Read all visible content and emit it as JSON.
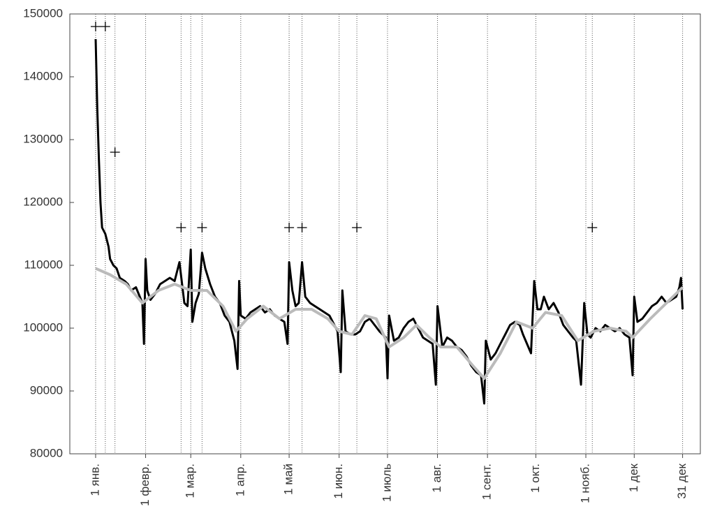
{
  "chart_data": {
    "type": "line",
    "xlim": [
      -15,
      376
    ],
    "ylim": [
      80000,
      150000
    ],
    "yticks": [
      80000,
      90000,
      100000,
      110000,
      120000,
      130000,
      140000,
      150000
    ],
    "xticks": [
      {
        "value": 1,
        "label": "1 янв."
      },
      {
        "value": 32,
        "label": "1 февр."
      },
      {
        "value": 60,
        "label": "1 мар."
      },
      {
        "value": 91,
        "label": "1 апр."
      },
      {
        "value": 121,
        "label": "1 май"
      },
      {
        "value": 152,
        "label": "1 июн."
      },
      {
        "value": 182,
        "label": "1 июль"
      },
      {
        "value": 213,
        "label": "1 авг."
      },
      {
        "value": 244,
        "label": "1 сент."
      },
      {
        "value": 274,
        "label": "1 окт."
      },
      {
        "value": 305,
        "label": "1 нояб."
      },
      {
        "value": 335,
        "label": "1 дек"
      },
      {
        "value": 365,
        "label": "31 дек"
      }
    ],
    "grid": true,
    "series": [
      {
        "color": "#000000",
        "x": [
          1,
          2,
          3,
          4,
          5,
          7,
          9,
          10,
          12,
          14,
          16,
          19,
          21,
          23,
          26,
          30,
          31,
          32,
          33,
          35,
          38,
          41,
          44,
          47,
          50,
          53,
          56,
          58,
          60,
          61,
          63,
          65,
          67,
          69,
          72,
          75,
          78,
          81,
          84,
          87,
          89,
          90,
          91,
          94,
          97,
          100,
          103,
          106,
          109,
          112,
          115,
          118,
          120,
          121,
          123,
          125,
          127,
          129,
          131,
          134,
          137,
          140,
          143,
          146,
          149,
          151,
          153,
          154,
          156,
          159,
          162,
          165,
          168,
          171,
          174,
          177,
          181,
          182,
          183,
          186,
          189,
          192,
          195,
          198,
          201,
          204,
          207,
          210,
          212,
          213,
          216,
          219,
          222,
          225,
          228,
          231,
          234,
          237,
          240,
          242,
          243,
          246,
          249,
          252,
          255,
          258,
          261,
          264,
          266,
          271,
          273,
          275,
          277,
          279,
          282,
          285,
          288,
          291,
          294,
          297,
          299,
          302,
          304,
          306,
          308,
          311,
          314,
          317,
          320,
          323,
          326,
          329,
          332,
          334,
          335,
          337,
          340,
          343,
          346,
          349,
          352,
          355,
          358,
          361,
          363,
          364,
          365
        ],
        "values": [
          146000,
          135000,
          127000,
          120000,
          116000,
          115000,
          113000,
          111000,
          110000,
          109500,
          108000,
          107500,
          107000,
          106000,
          106500,
          104000,
          97500,
          111000,
          106000,
          104500,
          105500,
          107000,
          107500,
          108000,
          107500,
          110500,
          104000,
          103500,
          112500,
          101000,
          104000,
          105500,
          112000,
          109500,
          107000,
          105000,
          104000,
          102000,
          101000,
          98000,
          93500,
          107500,
          102000,
          101500,
          102500,
          103000,
          103500,
          102500,
          103000,
          102000,
          101500,
          101000,
          97500,
          110500,
          106000,
          103500,
          104000,
          110500,
          105000,
          104000,
          103500,
          103000,
          102500,
          102000,
          100500,
          99500,
          93000,
          106000,
          99500,
          99000,
          99000,
          99500,
          101000,
          101500,
          100500,
          99500,
          98500,
          92000,
          102000,
          98000,
          98500,
          100000,
          101000,
          101500,
          100000,
          98500,
          98000,
          97500,
          91000,
          103500,
          97000,
          98500,
          98000,
          97000,
          96500,
          95500,
          94000,
          93000,
          92500,
          88000,
          98000,
          95000,
          96000,
          97500,
          99000,
          100500,
          101000,
          100500,
          99000,
          96000,
          107500,
          103000,
          103000,
          105000,
          103000,
          104000,
          102500,
          100500,
          99500,
          98500,
          98000,
          91000,
          104000,
          99000,
          98500,
          100000,
          99500,
          100500,
          100000,
          99500,
          100000,
          99000,
          98500,
          92500,
          105000,
          101000,
          101500,
          102500,
          103500,
          104000,
          105000,
          104000,
          104500,
          105000,
          106500,
          108000,
          103000
        ]
      },
      {
        "color": "#bbbbbb",
        "x": [
          1,
          10,
          20,
          30,
          40,
          50,
          60,
          70,
          80,
          88,
          95,
          105,
          115,
          125,
          135,
          145,
          152,
          160,
          168,
          175,
          183,
          192,
          200,
          208,
          215,
          225,
          235,
          242,
          252,
          262,
          272,
          280,
          290,
          300,
          310,
          320,
          330,
          334,
          345,
          355,
          365
        ],
        "values": [
          109500,
          108500,
          107000,
          104000,
          106000,
          107000,
          106000,
          106000,
          103500,
          99500,
          101500,
          103500,
          101500,
          103000,
          103000,
          101500,
          99500,
          99000,
          102000,
          101500,
          97000,
          98500,
          100500,
          98500,
          97000,
          97000,
          94000,
          92000,
          96000,
          101000,
          100000,
          102500,
          102000,
          98000,
          99500,
          100000,
          99500,
          98500,
          101500,
          104000,
          106500
        ]
      }
    ],
    "holiday_markers": {
      "x": [
        1,
        7,
        13,
        54,
        67,
        121,
        129,
        163,
        309
      ],
      "y": [
        148000,
        148000,
        128000,
        116000,
        116000,
        116000,
        116000,
        116000,
        116000
      ]
    }
  }
}
